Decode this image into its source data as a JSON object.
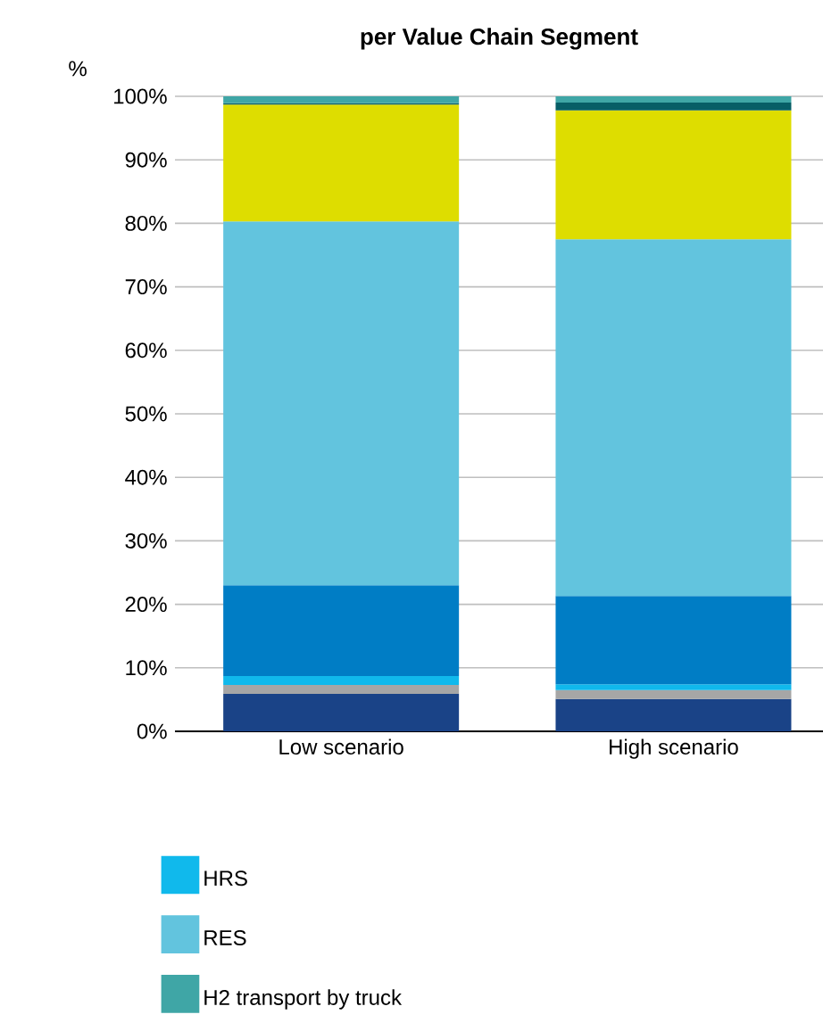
{
  "chart_data": {
    "type": "bar",
    "title": "per Value Chain Segment",
    "ylabel": "%",
    "categories": [
      "Low scenario",
      "High scenario"
    ],
    "stacked": true,
    "series": [
      {
        "color": "#1a4387",
        "values": [
          5.9,
          5.1
        ]
      },
      {
        "color": "#a6a6a6",
        "values": [
          1.4,
          1.4
        ]
      },
      {
        "name": "HRS",
        "color": "#10b9ec",
        "values": [
          1.4,
          0.9
        ]
      },
      {
        "color": "#007dc5",
        "values": [
          14.3,
          13.9
        ]
      },
      {
        "name": "RES",
        "color": "#62c4de",
        "values": [
          57.3,
          56.2
        ]
      },
      {
        "color": "#dedd00",
        "values": [
          18.4,
          20.3
        ]
      },
      {
        "color": "#075e66",
        "values": [
          0.2,
          1.2
        ]
      },
      {
        "name": "H2 transport by truck",
        "color": "#3fa6a6",
        "values": [
          1.1,
          1.0
        ]
      }
    ],
    "ylim": [
      0,
      100
    ],
    "yticks": [
      {
        "value": 0,
        "label": "0%"
      },
      {
        "value": 10,
        "label": "10%"
      },
      {
        "value": 20,
        "label": "20%"
      },
      {
        "value": 30,
        "label": "30%"
      },
      {
        "value": 40,
        "label": "40%"
      },
      {
        "value": 50,
        "label": "50%"
      },
      {
        "value": 60,
        "label": "60%"
      },
      {
        "value": 70,
        "label": "70%"
      },
      {
        "value": 80,
        "label": "80%"
      },
      {
        "value": 90,
        "label": "90%"
      },
      {
        "value": 100,
        "label": "100%"
      }
    ],
    "grid": "y",
    "legend": "bottom"
  }
}
